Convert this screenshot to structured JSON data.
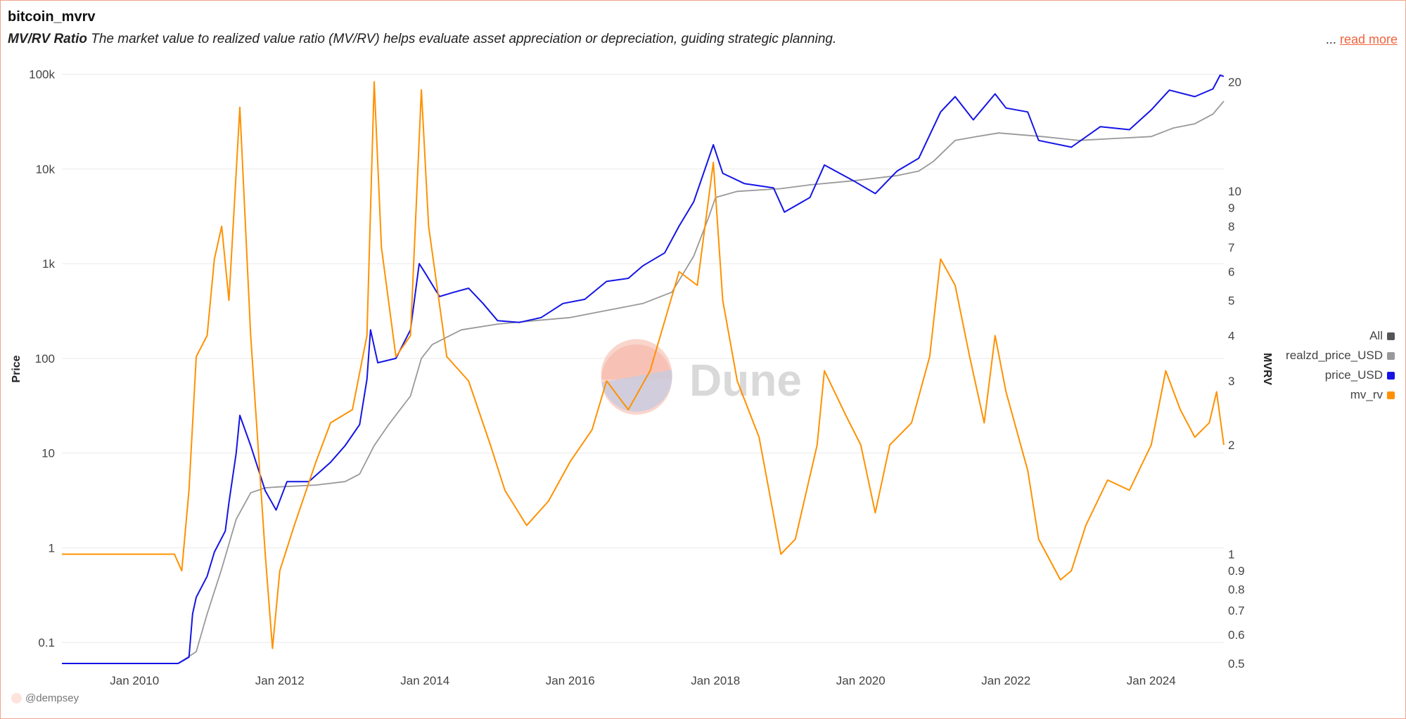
{
  "header": {
    "title": "bitcoin_mvrv",
    "subtitle_bold": "MV/RV Ratio",
    "subtitle": " The market value to realized value ratio (MV/RV) helps evaluate asset appreciation or depreciation, guiding strategic planning.",
    "ellipsis": "...",
    "read_more": "read more"
  },
  "watermark": "Dune",
  "footer": {
    "author": "@dempsey"
  },
  "legend": {
    "items": [
      {
        "label": "All",
        "color": "#555555"
      },
      {
        "label": "realzd_price_USD",
        "color": "#999999"
      },
      {
        "label": "price_USD",
        "color": "#1414e6"
      },
      {
        "label": "mv_rv",
        "color": "#ff9100"
      }
    ]
  },
  "chart_data": {
    "type": "line",
    "title": "bitcoin_mvrv",
    "x_range": [
      2009.0,
      2025.0
    ],
    "x_ticks": [
      {
        "x": 2010,
        "label": "Jan 2010"
      },
      {
        "x": 2012,
        "label": "Jan 2012"
      },
      {
        "x": 2014,
        "label": "Jan 2014"
      },
      {
        "x": 2016,
        "label": "Jan 2016"
      },
      {
        "x": 2018,
        "label": "Jan 2018"
      },
      {
        "x": 2020,
        "label": "Jan 2020"
      },
      {
        "x": 2022,
        "label": "Jan 2022"
      },
      {
        "x": 2024,
        "label": "Jan 2024"
      }
    ],
    "y_left": {
      "label": "Price",
      "scale": "log",
      "range": [
        0.06,
        120000
      ],
      "ticks": [
        {
          "v": 100000,
          "label": "100k"
        },
        {
          "v": 10000,
          "label": "10k"
        },
        {
          "v": 1000,
          "label": "1k"
        },
        {
          "v": 100,
          "label": "100"
        },
        {
          "v": 10,
          "label": "10"
        },
        {
          "v": 1,
          "label": "1"
        },
        {
          "v": 0.1,
          "label": "0.1"
        }
      ]
    },
    "y_right": {
      "label": "MVRV",
      "scale": "log",
      "range": [
        0.5,
        22
      ],
      "ticks": [
        {
          "v": 20,
          "label": "20"
        },
        {
          "v": 10,
          "label": "10"
        },
        {
          "v": 9,
          "label": "9"
        },
        {
          "v": 8,
          "label": "8"
        },
        {
          "v": 7,
          "label": "7"
        },
        {
          "v": 6,
          "label": "6"
        },
        {
          "v": 5,
          "label": "5"
        },
        {
          "v": 4,
          "label": "4"
        },
        {
          "v": 3,
          "label": "3"
        },
        {
          "v": 2,
          "label": "2"
        },
        {
          "v": 1,
          "label": "1"
        },
        {
          "v": 0.9,
          "label": "0.9"
        },
        {
          "v": 0.8,
          "label": "0.8"
        },
        {
          "v": 0.7,
          "label": "0.7"
        },
        {
          "v": 0.6,
          "label": "0.6"
        },
        {
          "v": 0.5,
          "label": "0.5"
        }
      ]
    },
    "series": [
      {
        "name": "realzd_price_USD",
        "axis": "left",
        "color": "#999999",
        "points": [
          [
            2009.0,
            0.06
          ],
          [
            2010.6,
            0.06
          ],
          [
            2010.85,
            0.08
          ],
          [
            2011.0,
            0.2
          ],
          [
            2011.2,
            0.6
          ],
          [
            2011.4,
            2.0
          ],
          [
            2011.6,
            3.8
          ],
          [
            2011.8,
            4.3
          ],
          [
            2012.0,
            4.4
          ],
          [
            2012.5,
            4.6
          ],
          [
            2012.9,
            5.0
          ],
          [
            2013.1,
            6.0
          ],
          [
            2013.3,
            12
          ],
          [
            2013.5,
            20
          ],
          [
            2013.8,
            40
          ],
          [
            2013.95,
            100
          ],
          [
            2014.1,
            140
          ],
          [
            2014.5,
            200
          ],
          [
            2015.0,
            230
          ],
          [
            2015.5,
            250
          ],
          [
            2016.0,
            270
          ],
          [
            2016.5,
            320
          ],
          [
            2017.0,
            380
          ],
          [
            2017.4,
            500
          ],
          [
            2017.7,
            1200
          ],
          [
            2017.9,
            3000
          ],
          [
            2018.0,
            5000
          ],
          [
            2018.3,
            5800
          ],
          [
            2018.9,
            6200
          ],
          [
            2019.3,
            6800
          ],
          [
            2019.9,
            7500
          ],
          [
            2020.5,
            8500
          ],
          [
            2020.8,
            9500
          ],
          [
            2021.0,
            12000
          ],
          [
            2021.3,
            20000
          ],
          [
            2021.6,
            22000
          ],
          [
            2021.9,
            24000
          ],
          [
            2022.5,
            22000
          ],
          [
            2023.0,
            20000
          ],
          [
            2023.5,
            21000
          ],
          [
            2024.0,
            22000
          ],
          [
            2024.3,
            27000
          ],
          [
            2024.6,
            30000
          ],
          [
            2024.85,
            38000
          ],
          [
            2025.0,
            52000
          ]
        ]
      },
      {
        "name": "price_USD",
        "axis": "left",
        "color": "#1414e6",
        "points": [
          [
            2009.0,
            0.06
          ],
          [
            2010.6,
            0.06
          ],
          [
            2010.75,
            0.07
          ],
          [
            2010.8,
            0.2
          ],
          [
            2010.85,
            0.3
          ],
          [
            2011.0,
            0.5
          ],
          [
            2011.1,
            0.9
          ],
          [
            2011.25,
            1.5
          ],
          [
            2011.3,
            3
          ],
          [
            2011.4,
            10
          ],
          [
            2011.45,
            25
          ],
          [
            2011.6,
            12
          ],
          [
            2011.8,
            4
          ],
          [
            2011.95,
            2.5
          ],
          [
            2012.1,
            5
          ],
          [
            2012.4,
            5
          ],
          [
            2012.7,
            8
          ],
          [
            2012.9,
            12
          ],
          [
            2013.1,
            20
          ],
          [
            2013.2,
            60
          ],
          [
            2013.25,
            200
          ],
          [
            2013.35,
            90
          ],
          [
            2013.6,
            100
          ],
          [
            2013.8,
            200
          ],
          [
            2013.92,
            1000
          ],
          [
            2014.0,
            800
          ],
          [
            2014.2,
            450
          ],
          [
            2014.4,
            500
          ],
          [
            2014.6,
            550
          ],
          [
            2014.8,
            380
          ],
          [
            2015.0,
            250
          ],
          [
            2015.3,
            240
          ],
          [
            2015.6,
            270
          ],
          [
            2015.9,
            380
          ],
          [
            2016.2,
            420
          ],
          [
            2016.5,
            650
          ],
          [
            2016.8,
            700
          ],
          [
            2017.0,
            950
          ],
          [
            2017.3,
            1300
          ],
          [
            2017.5,
            2500
          ],
          [
            2017.7,
            4500
          ],
          [
            2017.97,
            18000
          ],
          [
            2018.1,
            9000
          ],
          [
            2018.4,
            7000
          ],
          [
            2018.8,
            6300
          ],
          [
            2018.95,
            3500
          ],
          [
            2019.3,
            5000
          ],
          [
            2019.5,
            11000
          ],
          [
            2019.9,
            7500
          ],
          [
            2020.2,
            5500
          ],
          [
            2020.5,
            9500
          ],
          [
            2020.8,
            13000
          ],
          [
            2021.1,
            40000
          ],
          [
            2021.3,
            58000
          ],
          [
            2021.55,
            33000
          ],
          [
            2021.85,
            62000
          ],
          [
            2022.0,
            44000
          ],
          [
            2022.3,
            40000
          ],
          [
            2022.45,
            20000
          ],
          [
            2022.9,
            17000
          ],
          [
            2023.3,
            28000
          ],
          [
            2023.7,
            26000
          ],
          [
            2024.0,
            42000
          ],
          [
            2024.25,
            68000
          ],
          [
            2024.6,
            58000
          ],
          [
            2024.85,
            70000
          ],
          [
            2024.95,
            98000
          ],
          [
            2025.0,
            95000
          ]
        ]
      },
      {
        "name": "mv_rv",
        "axis": "right",
        "color": "#ff9100",
        "points": [
          [
            2009.0,
            1.0
          ],
          [
            2010.55,
            1.0
          ],
          [
            2010.65,
            0.9
          ],
          [
            2010.75,
            1.5
          ],
          [
            2010.85,
            3.5
          ],
          [
            2011.0,
            4.0
          ],
          [
            2011.1,
            6.5
          ],
          [
            2011.2,
            8.0
          ],
          [
            2011.3,
            5.0
          ],
          [
            2011.45,
            17.0
          ],
          [
            2011.6,
            4.0
          ],
          [
            2011.7,
            2.0
          ],
          [
            2011.8,
            1.0
          ],
          [
            2011.9,
            0.55
          ],
          [
            2012.0,
            0.9
          ],
          [
            2012.2,
            1.2
          ],
          [
            2012.5,
            1.8
          ],
          [
            2012.7,
            2.3
          ],
          [
            2013.0,
            2.5
          ],
          [
            2013.2,
            4.0
          ],
          [
            2013.3,
            20.0
          ],
          [
            2013.4,
            7.0
          ],
          [
            2013.6,
            3.5
          ],
          [
            2013.8,
            4.0
          ],
          [
            2013.95,
            19.0
          ],
          [
            2014.05,
            8.0
          ],
          [
            2014.3,
            3.5
          ],
          [
            2014.6,
            3.0
          ],
          [
            2014.9,
            2.0
          ],
          [
            2015.1,
            1.5
          ],
          [
            2015.4,
            1.2
          ],
          [
            2015.7,
            1.4
          ],
          [
            2016.0,
            1.8
          ],
          [
            2016.3,
            2.2
          ],
          [
            2016.5,
            3.0
          ],
          [
            2016.8,
            2.5
          ],
          [
            2017.1,
            3.2
          ],
          [
            2017.5,
            6.0
          ],
          [
            2017.75,
            5.5
          ],
          [
            2017.97,
            12.0
          ],
          [
            2018.1,
            5.0
          ],
          [
            2018.3,
            3.0
          ],
          [
            2018.6,
            2.1
          ],
          [
            2018.9,
            1.0
          ],
          [
            2019.1,
            1.1
          ],
          [
            2019.4,
            2.0
          ],
          [
            2019.5,
            3.2
          ],
          [
            2019.8,
            2.4
          ],
          [
            2020.0,
            2.0
          ],
          [
            2020.2,
            1.3
          ],
          [
            2020.4,
            2.0
          ],
          [
            2020.7,
            2.3
          ],
          [
            2020.95,
            3.5
          ],
          [
            2021.1,
            6.5
          ],
          [
            2021.3,
            5.5
          ],
          [
            2021.5,
            3.5
          ],
          [
            2021.7,
            2.3
          ],
          [
            2021.85,
            4.0
          ],
          [
            2022.0,
            2.8
          ],
          [
            2022.3,
            1.7
          ],
          [
            2022.45,
            1.1
          ],
          [
            2022.75,
            0.85
          ],
          [
            2022.9,
            0.9
          ],
          [
            2023.1,
            1.2
          ],
          [
            2023.4,
            1.6
          ],
          [
            2023.7,
            1.5
          ],
          [
            2024.0,
            2.0
          ],
          [
            2024.2,
            3.2
          ],
          [
            2024.4,
            2.5
          ],
          [
            2024.6,
            2.1
          ],
          [
            2024.8,
            2.3
          ],
          [
            2024.9,
            2.8
          ],
          [
            2025.0,
            2.0
          ]
        ]
      }
    ]
  }
}
